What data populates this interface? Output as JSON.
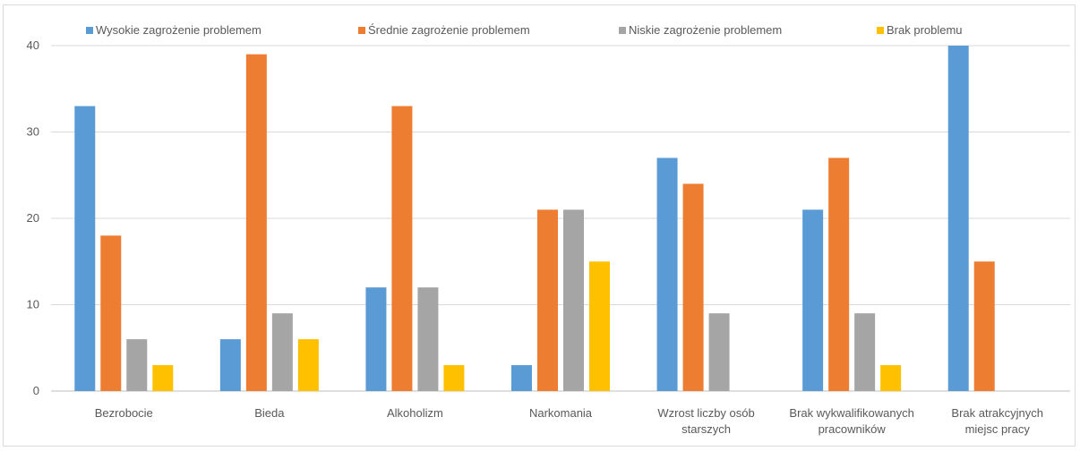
{
  "chart_data": {
    "type": "bar",
    "title": "",
    "xlabel": "",
    "ylabel": "",
    "ylim": [
      0,
      40
    ],
    "yticks": [
      0,
      10,
      20,
      30,
      40
    ],
    "grid": true,
    "legend_position": "top",
    "categories": [
      [
        "Bezrobocie"
      ],
      [
        "Bieda"
      ],
      [
        "Alkoholizm"
      ],
      [
        "Narkomania"
      ],
      [
        "Wzrost liczby osób",
        "starszych"
      ],
      [
        "Brak wykwalifikowanych",
        "pracowników"
      ],
      [
        "Brak atrakcyjnych",
        "miejsc pracy"
      ]
    ],
    "series": [
      {
        "name": "Wysokie zagrożenie problemem",
        "color": "#5b9bd5",
        "values": [
          33,
          6,
          12,
          3,
          27,
          21,
          40
        ]
      },
      {
        "name": "Średnie zagrożenie problemem",
        "color": "#ed7d31",
        "values": [
          18,
          39,
          33,
          21,
          24,
          27,
          15
        ]
      },
      {
        "name": "Niskie zagrożenie problemem",
        "color": "#a5a5a5",
        "values": [
          6,
          9,
          12,
          21,
          9,
          9,
          0
        ]
      },
      {
        "name": "Brak problemu",
        "color": "#ffc000",
        "values": [
          3,
          6,
          3,
          15,
          0,
          3,
          0
        ]
      }
    ]
  }
}
